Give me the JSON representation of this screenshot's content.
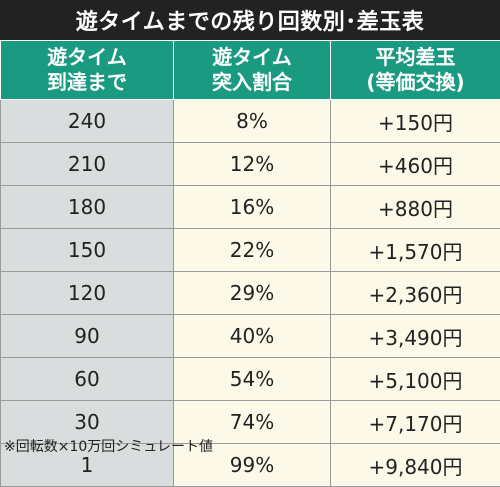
{
  "title": "遊タイムまでの残り回数別･差玉表",
  "table": {
    "headers": [
      "遊タイム\n到達まで",
      "遊タイム\n突入割合",
      "平均差玉\n(等価交換)"
    ],
    "rows": [
      {
        "remaining": "240",
        "rate": "8%",
        "diff": "+150円"
      },
      {
        "remaining": "210",
        "rate": "12%",
        "diff": "+460円"
      },
      {
        "remaining": "180",
        "rate": "16%",
        "diff": "+880円"
      },
      {
        "remaining": "150",
        "rate": "22%",
        "diff": "+1,570円"
      },
      {
        "remaining": "120",
        "rate": "29%",
        "diff": "+2,360円"
      },
      {
        "remaining": "90",
        "rate": "40%",
        "diff": "+3,490円"
      },
      {
        "remaining": "60",
        "rate": "54%",
        "diff": "+5,100円"
      },
      {
        "remaining": "30",
        "rate": "74%",
        "diff": "+7,170円"
      },
      {
        "remaining": "1",
        "rate": "99%",
        "diff": "+9,840円"
      }
    ]
  },
  "footnote": "※回転数×10万回シミュレート値",
  "colors": {
    "title_bg": "#222222",
    "header_bg": "#1b9a82",
    "first_col_bg": "#dadddd",
    "other_col_bg": "#fdf9e9"
  }
}
